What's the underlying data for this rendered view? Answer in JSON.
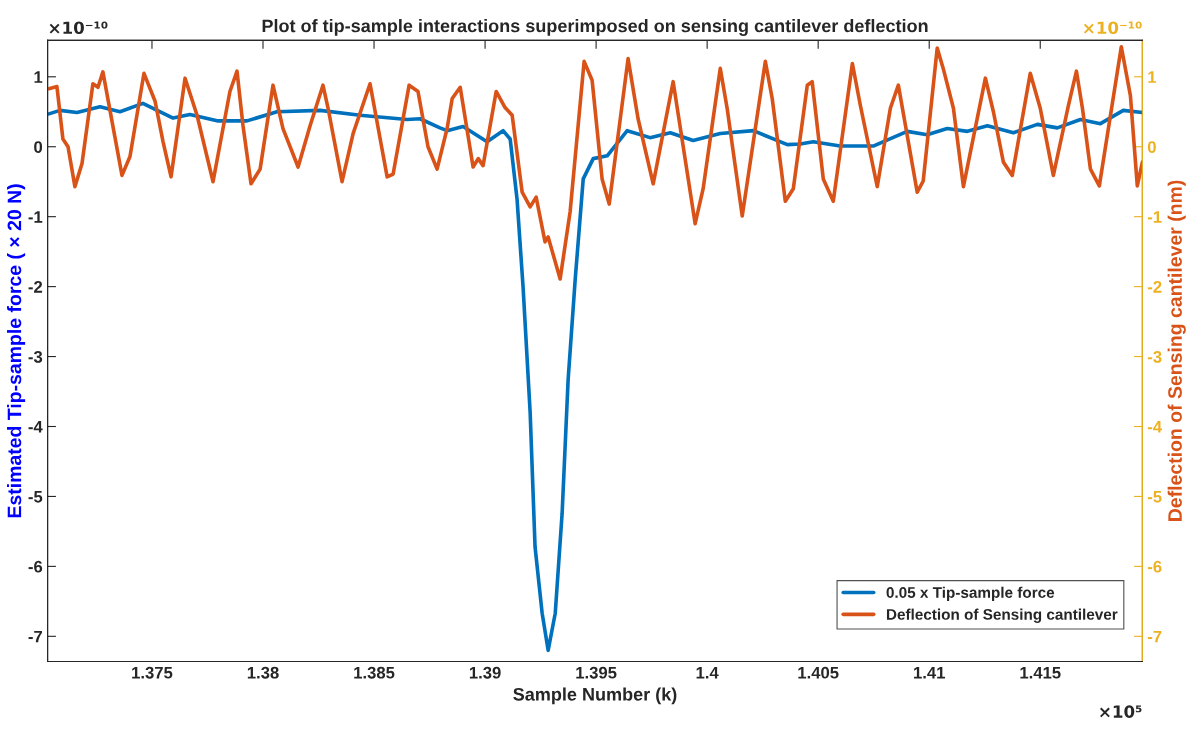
{
  "chart_data": {
    "type": "line",
    "title": "Plot of tip-sample interactions superimposed on sensing cantilever deflection",
    "xlabel": "Sample Number (k)",
    "ylabel": "Estimated Tip-sample force ( × 20 N)",
    "y2label": "Deflection of Sensing cantilever (nm)",
    "annotations": [
      "×10⁻¹⁰",
      "×10⁻¹⁰",
      "×10⁵"
    ],
    "xlim": [
      1.3703,
      1.4196
    ],
    "xticks": [
      1.375,
      1.38,
      1.385,
      1.39,
      1.395,
      1.4,
      1.405,
      1.41,
      1.415
    ],
    "ylim": [
      -7.36,
      1.52
    ],
    "yticks": [
      -7,
      -6,
      -5,
      -4,
      -3,
      -2,
      -1,
      0,
      1
    ],
    "y2lim": [
      -7.36,
      1.52
    ],
    "y2ticks": [
      -7,
      -6,
      -5,
      -4,
      -3,
      -2,
      -1,
      0,
      1
    ],
    "grid": false,
    "legend": "bottom right",
    "line_style": "solid",
    "marker": "none",
    "series": [
      {
        "name": "0.05 x Tip-sample force",
        "color": "#0072bd",
        "x": [
          1.37036,
          1.37086,
          1.37162,
          1.37266,
          1.37356,
          1.37459,
          1.37595,
          1.37671,
          1.37793,
          1.37928,
          1.38063,
          1.38257,
          1.38437,
          1.38649,
          1.38707,
          1.38797,
          1.38829,
          1.38901,
          1.39009,
          1.39081,
          1.39113,
          1.39144,
          1.39171,
          1.39203,
          1.39225,
          1.39257,
          1.39284,
          1.39316,
          1.39347,
          1.39374,
          1.39406,
          1.39442,
          1.39487,
          1.3955,
          1.3964,
          1.39743,
          1.39834,
          1.39937,
          1.40059,
          1.40208,
          1.40361,
          1.40419,
          1.40478,
          1.40599,
          1.40748,
          1.40901,
          1.40991,
          1.41081,
          1.41172,
          1.41262,
          1.41379,
          1.41487,
          1.41577,
          1.41681,
          1.41771,
          1.41874,
          1.4196
        ],
        "values": [
          0.47,
          0.52,
          0.49,
          0.57,
          0.5,
          0.62,
          0.41,
          0.46,
          0.37,
          0.37,
          0.5,
          0.52,
          0.45,
          0.39,
          0.4,
          0.27,
          0.23,
          0.29,
          0.07,
          0.23,
          0.11,
          -0.75,
          -2.0,
          -3.8,
          -5.72,
          -6.67,
          -7.2,
          -6.67,
          -5.24,
          -3.33,
          -1.89,
          -0.46,
          -0.17,
          -0.13,
          0.23,
          0.13,
          0.2,
          0.09,
          0.19,
          0.23,
          0.03,
          0.04,
          0.07,
          0.01,
          0.01,
          0.22,
          0.17,
          0.26,
          0.22,
          0.3,
          0.2,
          0.32,
          0.27,
          0.39,
          0.33,
          0.52,
          0.49
        ]
      },
      {
        "name": "Deflection of Sensing cantilever",
        "color": "#d95319",
        "axis": "y2",
        "x": [
          1.37036,
          1.37072,
          1.37099,
          1.37122,
          1.37153,
          1.37185,
          1.37234,
          1.37257,
          1.37279,
          1.37333,
          1.37365,
          1.37401,
          1.37464,
          1.37514,
          1.3755,
          1.37586,
          1.37649,
          1.37703,
          1.37775,
          1.37851,
          1.37883,
          1.3791,
          1.37946,
          1.37987,
          1.38045,
          1.3809,
          1.38158,
          1.38212,
          1.3827,
          1.38293,
          1.38356,
          1.38406,
          1.38482,
          1.38559,
          1.38586,
          1.38658,
          1.38698,
          1.38743,
          1.38784,
          1.38829,
          1.38852,
          1.38888,
          1.38946,
          1.38969,
          1.38991,
          1.3905,
          1.3909,
          1.39122,
          1.39167,
          1.39203,
          1.3923,
          1.3927,
          1.39284,
          1.39338,
          1.39383,
          1.39446,
          1.39482,
          1.39527,
          1.39559,
          1.39644,
          1.39689,
          1.39757,
          1.39847,
          1.39946,
          1.39982,
          1.40059,
          1.4009,
          1.40158,
          1.40262,
          1.40293,
          1.40352,
          1.40388,
          1.40451,
          1.40473,
          1.40523,
          1.40568,
          1.40654,
          1.4069,
          1.40766,
          1.40825,
          1.40861,
          1.40946,
          1.40973,
          1.41036,
          1.41063,
          1.41109,
          1.41154,
          1.41253,
          1.41289,
          1.41334,
          1.41374,
          1.41455,
          1.415,
          1.41559,
          1.41627,
          1.41663,
          1.4169,
          1.41726,
          1.41766,
          1.41865,
          1.41906,
          1.41937,
          1.4196
        ],
        "values": [
          0.83,
          0.86,
          0.11,
          0,
          -0.57,
          -0.24,
          0.9,
          0.85,
          1.07,
          0.14,
          -0.41,
          -0.14,
          1.05,
          0.65,
          0.07,
          -0.43,
          0.98,
          0.45,
          -0.5,
          0.79,
          1.08,
          0.3,
          -0.53,
          -0.32,
          0.88,
          0.26,
          -0.29,
          0.3,
          0.88,
          0.55,
          -0.5,
          0.19,
          0.9,
          -0.43,
          -0.39,
          0.88,
          0.79,
          0,
          -0.32,
          0.26,
          0.69,
          0.85,
          -0.29,
          -0.17,
          -0.27,
          0.79,
          0.56,
          0.45,
          -0.65,
          -0.86,
          -0.72,
          -1.36,
          -1.29,
          -1.89,
          -0.93,
          1.22,
          0.95,
          -0.46,
          -0.82,
          1.26,
          0.4,
          -0.53,
          0.93,
          -1.1,
          -0.6,
          1.12,
          0.55,
          -0.99,
          1.22,
          0.69,
          -0.78,
          -0.6,
          0.88,
          0.93,
          -0.46,
          -0.78,
          1.19,
          0.59,
          -0.57,
          0.55,
          0.88,
          -0.65,
          -0.49,
          1.41,
          1.12,
          0.55,
          -0.57,
          0.98,
          0.5,
          -0.22,
          -0.41,
          1.05,
          0.55,
          -0.41,
          0.59,
          1.08,
          0.55,
          -0.32,
          -0.56,
          1.43,
          0.73,
          -0.56,
          -0.22
        ]
      }
    ]
  }
}
